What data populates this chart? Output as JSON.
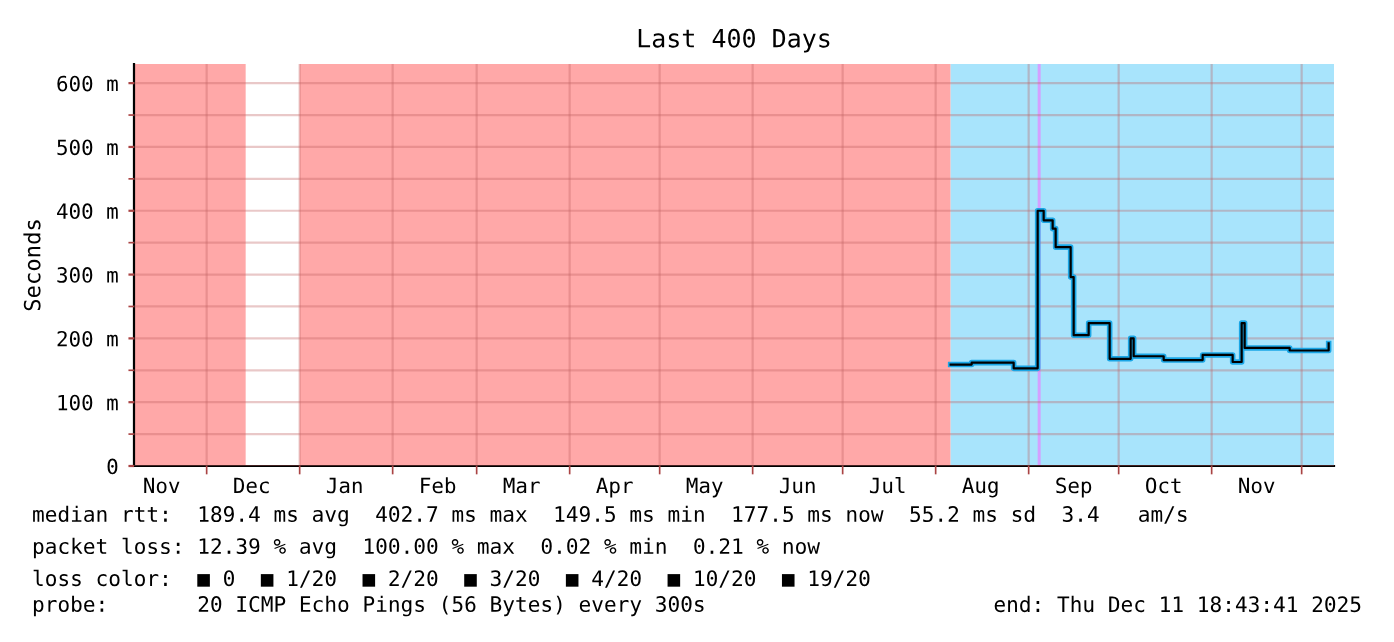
{
  "chart_data": {
    "type": "step",
    "title": "Last 400 Days",
    "ylabel": "Seconds",
    "x": [
      "2025-08-06",
      "2025-08-13",
      "2025-08-27",
      "2025-09-04",
      "2025-09-06",
      "2025-09-09",
      "2025-09-10",
      "2025-09-15",
      "2025-09-16",
      "2025-09-21",
      "2025-09-28",
      "2025-10-05",
      "2025-10-06",
      "2025-10-16",
      "2025-10-29",
      "2025-11-08",
      "2025-11-11",
      "2025-11-12",
      "2025-11-27",
      "2025-12-09",
      "2025-12-10"
    ],
    "series": [
      {
        "color": "#1aa6e6",
        "values": [
          159,
          162,
          153,
          400,
          385,
          372,
          343,
          296,
          205,
          224,
          168,
          200,
          172,
          166,
          174,
          163,
          224,
          185,
          181,
          181,
          192
        ]
      }
    ],
    "xlim": [
      "2024-11-06T18:43",
      "2025-12-11T18:43"
    ],
    "xticks": [
      {
        "value": "2024-11-16",
        "label": "Nov"
      },
      {
        "value": "2024-12-16",
        "label": "Dec"
      },
      {
        "value": "2025-01-16",
        "label": "Jan"
      },
      {
        "value": "2025-02-16",
        "label": "Feb"
      },
      {
        "value": "2025-03-16",
        "label": "Mar"
      },
      {
        "value": "2025-04-16",
        "label": "Apr"
      },
      {
        "value": "2025-05-16",
        "label": "May"
      },
      {
        "value": "2025-06-16",
        "label": "Jun"
      },
      {
        "value": "2025-07-16",
        "label": "Jul"
      },
      {
        "value": "2025-08-16",
        "label": "Aug"
      },
      {
        "value": "2025-09-16",
        "label": "Sep"
      },
      {
        "value": "2025-10-16",
        "label": "Oct"
      },
      {
        "value": "2025-11-16",
        "label": "Nov"
      },
      {
        "value": "2024-12-01",
        "label": null
      },
      {
        "value": "2025-01-01",
        "label": null
      },
      {
        "value": "2025-02-01",
        "label": null
      },
      {
        "value": "2025-03-01",
        "label": null
      },
      {
        "value": "2025-04-01",
        "label": null
      },
      {
        "value": "2025-05-01",
        "label": null
      },
      {
        "value": "2025-06-01",
        "label": null
      },
      {
        "value": "2025-07-01",
        "label": null
      },
      {
        "value": "2025-08-01",
        "label": null
      },
      {
        "value": "2025-09-01",
        "label": null
      },
      {
        "value": "2025-10-01",
        "label": null
      },
      {
        "value": "2025-11-01",
        "label": null
      },
      {
        "value": "2025-12-01",
        "label": null
      }
    ],
    "ylim": [
      0,
      630
    ],
    "yticks": [
      0,
      {
        "value": 100,
        "label": "100 m"
      },
      {
        "value": 200,
        "label": "200 m"
      },
      {
        "value": 300,
        "label": "300 m"
      },
      {
        "value": 400,
        "label": "400 m"
      },
      {
        "value": 500,
        "label": "500 m"
      },
      {
        "value": 600,
        "label": "600 m"
      },
      {
        "value": 50,
        "label": null
      },
      {
        "value": 150,
        "label": null
      },
      {
        "value": 250,
        "label": null
      },
      {
        "value": 350,
        "label": null
      },
      {
        "value": 450,
        "label": null
      },
      {
        "value": 550,
        "label": null
      }
    ],
    "grid": true,
    "bands": [
      {
        "axis": "x",
        "from": "2024-11-06T18:43",
        "to": "2024-12-14",
        "color": "#ffa8a8"
      },
      {
        "axis": "x",
        "from": "2025-01-01",
        "to": "2025-08-06",
        "color": "#ffa8a8"
      },
      {
        "axis": "x",
        "from": "2025-08-06",
        "to": "2025-12-11T18:43",
        "color": "#a8e4fc"
      },
      {
        "axis": "x",
        "from": "2025-09-04",
        "to": "2025-09-05",
        "color": "#d4a0ff"
      }
    ],
    "annotations": [
      "median rtt:  189.4 ms avg  402.7 ms max  149.5 ms min  177.5 ms now  55.2 ms sd  3.4   am/s",
      "packet loss: 12.39 % avg  100.00 % max  0.02 % min  0.21 % now",
      "loss color:  ■ 0  ■ 1/20  ■ 2/20  ■ 3/20  ■ 4/20  ■ 10/20  ■ 19/20",
      "probe:       20 ICMP Echo Pings (56 Bytes) every 300s",
      "end: Thu Dec 11 18:43:41 2025"
    ]
  }
}
